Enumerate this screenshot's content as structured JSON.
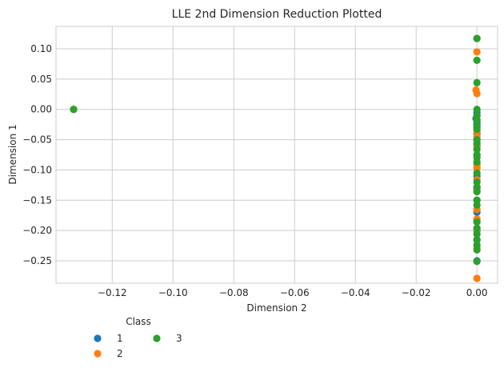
{
  "chart_data": {
    "type": "scatter",
    "title": "LLE 2nd Dimension Reduction Plotted",
    "xlabel": "Dimension 2",
    "ylabel": "Dimension 1",
    "xlim": [
      -0.1385,
      0.0068
    ],
    "ylim": [
      -0.287,
      0.137
    ],
    "xticks": [
      -0.12,
      -0.1,
      -0.08,
      -0.06,
      -0.04,
      -0.02,
      0.0
    ],
    "xtick_labels": [
      "−0.12",
      "−0.10",
      "−0.08",
      "−0.06",
      "−0.04",
      "−0.02",
      "0.00"
    ],
    "yticks": [
      0.1,
      0.05,
      0.0,
      -0.05,
      -0.1,
      -0.15,
      -0.2,
      -0.25
    ],
    "ytick_labels": [
      "0.10",
      "0.05",
      "0.00",
      "−0.05",
      "−0.10",
      "−0.15",
      "−0.20",
      "−0.25"
    ],
    "grid": true,
    "legend": {
      "title": "Class",
      "placement": "below-left"
    },
    "series": [
      {
        "name": "1",
        "color": "#1f77b4",
        "points": [
          [
            -0.1327,
            0.0
          ],
          [
            0.0,
            -0.005
          ],
          [
            0.0,
            -0.01
          ],
          [
            -0.0003,
            -0.015
          ],
          [
            0.0,
            -0.02
          ],
          [
            0.0,
            -0.025
          ],
          [
            0.0,
            -0.03
          ],
          [
            0.0,
            -0.04
          ],
          [
            0.0,
            -0.05
          ],
          [
            0.0,
            -0.06
          ],
          [
            0.0,
            -0.075
          ],
          [
            0.0,
            -0.09
          ],
          [
            0.0,
            -0.11
          ],
          [
            0.0,
            -0.13
          ],
          [
            0.0,
            -0.15
          ],
          [
            0.0,
            -0.17
          ],
          [
            0.0,
            -0.185
          ],
          [
            0.0,
            -0.2
          ],
          [
            0.0,
            -0.215
          ],
          [
            0.0,
            -0.25
          ]
        ]
      },
      {
        "name": "2",
        "color": "#ff7f0e",
        "points": [
          [
            -0.1327,
            0.0
          ],
          [
            0.0,
            0.117
          ],
          [
            0.0,
            0.095
          ],
          [
            -0.0003,
            0.032
          ],
          [
            0.0,
            0.026
          ],
          [
            0.0,
            -0.036
          ],
          [
            0.0,
            -0.045
          ],
          [
            0.0,
            -0.062
          ],
          [
            0.0,
            -0.092
          ],
          [
            0.0,
            -0.097
          ],
          [
            0.0,
            -0.116
          ],
          [
            0.0,
            -0.134
          ],
          [
            0.0,
            -0.15
          ],
          [
            0.0,
            -0.165
          ],
          [
            0.0,
            -0.181
          ],
          [
            0.0,
            -0.198
          ],
          [
            0.0,
            -0.228
          ],
          [
            0.0,
            -0.279
          ]
        ]
      },
      {
        "name": "3",
        "color": "#2ca02c",
        "points": [
          [
            -0.1327,
            0.0
          ],
          [
            0.0,
            0.117
          ],
          [
            0.0,
            0.081
          ],
          [
            0.0,
            0.044
          ],
          [
            0.0,
            0.0
          ],
          [
            0.0,
            -0.01
          ],
          [
            0.0,
            -0.017
          ],
          [
            0.0,
            -0.027
          ],
          [
            0.0,
            -0.033
          ],
          [
            0.0,
            -0.05
          ],
          [
            0.0,
            -0.056
          ],
          [
            0.0,
            -0.066
          ],
          [
            0.0,
            -0.075
          ],
          [
            0.0,
            -0.08
          ],
          [
            0.0,
            -0.087
          ],
          [
            0.0,
            -0.105
          ],
          [
            0.0,
            -0.12
          ],
          [
            0.0,
            -0.128
          ],
          [
            0.0,
            -0.136
          ],
          [
            0.0,
            -0.15
          ],
          [
            0.0,
            -0.158
          ],
          [
            0.0,
            -0.186
          ],
          [
            0.0,
            -0.196
          ],
          [
            0.0,
            -0.206
          ],
          [
            0.0,
            -0.216
          ],
          [
            0.0,
            -0.224
          ],
          [
            0.0,
            -0.232
          ],
          [
            0.0,
            -0.251
          ]
        ]
      }
    ]
  }
}
